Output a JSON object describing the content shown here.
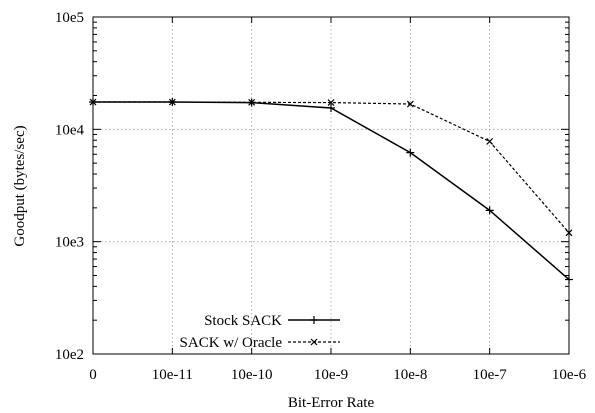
{
  "chart_data": {
    "type": "line",
    "xlabel": "Bit-Error Rate",
    "ylabel": "Goodput (bytes/sec)",
    "yscale": "log",
    "ylim": [
      100,
      100000
    ],
    "grid": true,
    "legend_position": "bottom-left",
    "categories": [
      "0",
      "10e-11",
      "10e-10",
      "10e-9",
      "10e-8",
      "10e-7",
      "10e-6"
    ],
    "y_tick_labels": [
      "10e2",
      "10e3",
      "10e4",
      "10e5"
    ],
    "y_tick_values": [
      100,
      1000,
      10000,
      100000
    ],
    "series": [
      {
        "name": "Stock SACK",
        "style": "solid",
        "marker": "+",
        "values": [
          17500,
          17500,
          17300,
          15500,
          6200,
          1900,
          460
        ]
      },
      {
        "name": "SACK w/ Oracle",
        "style": "dashed",
        "marker": "x",
        "values": [
          17500,
          17500,
          17400,
          17300,
          16800,
          7800,
          1200
        ]
      }
    ]
  }
}
